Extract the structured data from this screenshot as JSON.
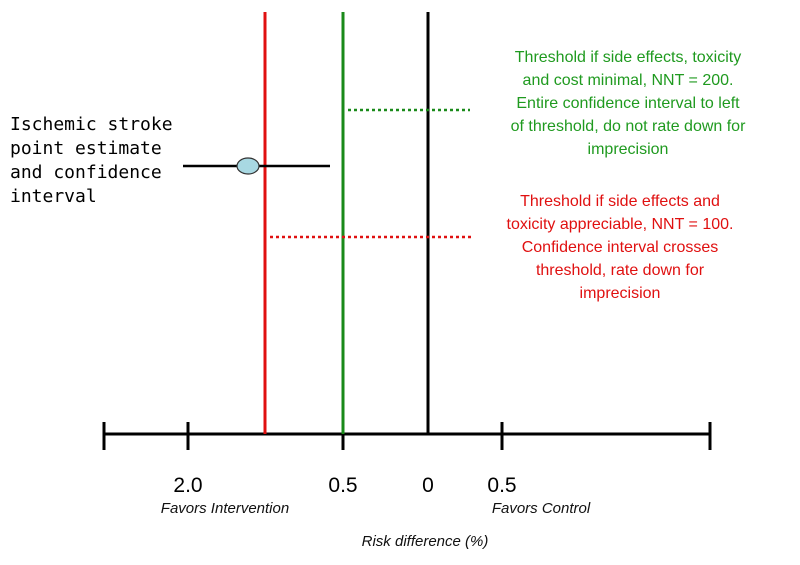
{
  "colors": {
    "neutral_line": "#000000",
    "threshold_200": "#1a8a1a",
    "threshold_100": "#e01010",
    "estimate_fill": "#a8d8e2"
  },
  "axis": {
    "tick_labels": [
      "2.0",
      "0.5",
      "0",
      "0.5"
    ],
    "favors_left": "Favors Intervention",
    "favors_right": "Favors Control",
    "title": "Risk difference (%)"
  },
  "estimate": {
    "label_lines": [
      "Ischemic stroke",
      "point estimate",
      "and confidence",
      "interval"
    ]
  },
  "annotations": {
    "green_lines": [
      "Threshold if side effects, toxicity",
      "and cost minimal, NNT = 200.",
      "Entire confidence interval to left",
      "of threshold, do not rate down for",
      "imprecision"
    ],
    "red_lines": [
      "Threshold if side effects and",
      "toxicity appreciable, NNT = 100.",
      "Confidence interval crosses",
      "threshold, rate down for",
      "imprecision"
    ]
  }
}
